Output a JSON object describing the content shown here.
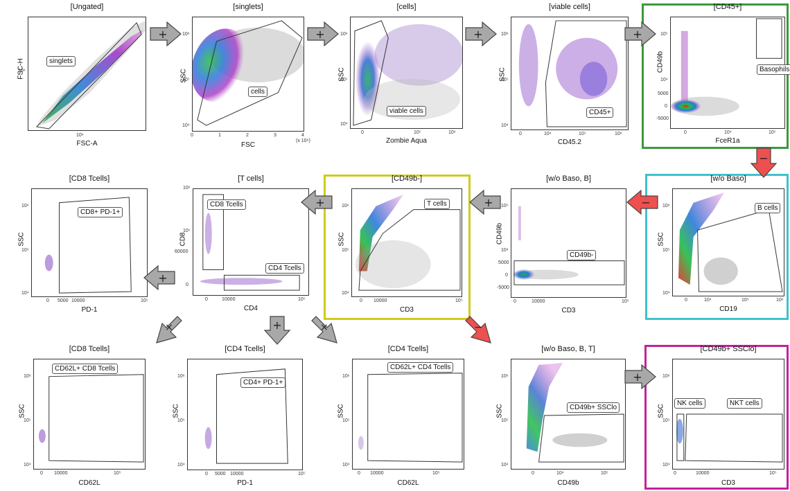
{
  "colors": {
    "green": "#3a9a3a",
    "cyan": "#3ec2cc",
    "yellow": "#cfcb1c",
    "magenta": "#c4219b",
    "arrow_gray": "#9a9a9a",
    "arrow_red": "#e84040"
  },
  "symbols": {
    "plus": "+",
    "minus": "−",
    "times": "×"
  },
  "panels": [
    {
      "id": "p1",
      "title": "[Ungated]",
      "x": "FSC-A",
      "y": "FSC-H",
      "gate": "singlets",
      "gate2": "",
      "xticks": [
        "10⁶"
      ],
      "yticks": [
        "10⁶"
      ]
    },
    {
      "id": "p2",
      "title": "[singlets]",
      "x": "FSC",
      "y": "SSC",
      "gate": "cells",
      "gate2": "",
      "xticks": [
        "0",
        "1",
        "2",
        "3",
        "4",
        "(x 10⁶)"
      ],
      "yticks": [
        "10⁶",
        "10⁵",
        "10⁴"
      ]
    },
    {
      "id": "p3",
      "title": "[cells]",
      "x": "Zombie Aqua",
      "y": "SSC",
      "gate": "viable cells",
      "gate2": "",
      "xticks": [
        "0",
        "10⁵",
        "10⁶"
      ],
      "yticks": [
        "10⁶",
        "10⁵",
        "10⁴"
      ]
    },
    {
      "id": "p4",
      "title": "[viable cells]",
      "x": "CD45.2",
      "y": "SSC",
      "gate": "CD45+",
      "gate2": "",
      "xticks": [
        "0",
        "10⁴",
        "10⁵",
        "10⁶"
      ],
      "yticks": [
        "10⁶",
        "10⁵",
        "10⁴"
      ]
    },
    {
      "id": "p5",
      "title": "[CD45+]",
      "x": "FceR1a",
      "y": "CD49b",
      "gate": "Basophils",
      "gate2": "",
      "xticks": [
        "0",
        "10⁴",
        "10⁵"
      ],
      "yticks": [
        "10⁵",
        "10⁴",
        "5000",
        "0",
        "-5000"
      ]
    },
    {
      "id": "p6",
      "title": "[CD8 Tcells]",
      "x": "PD-1",
      "y": "SSC",
      "gate": "CD8+ PD-1+",
      "gate2": "",
      "xticks": [
        "0",
        "5000",
        "10000",
        "10⁵"
      ],
      "yticks": [
        "10⁶",
        "10⁵",
        "10⁴"
      ]
    },
    {
      "id": "p7",
      "title": "[T cells]",
      "x": "CD4",
      "y": "CD8",
      "gate": "CD8 Tcells",
      "gate2": "CD4 Tcells",
      "xticks": [
        "0",
        "10000",
        "10⁵"
      ],
      "yticks": [
        "10⁶",
        "10⁵",
        "60000",
        "0"
      ]
    },
    {
      "id": "p8",
      "title": "[CD49b-]",
      "x": "CD3",
      "y": "SSC",
      "gate": "T cells",
      "gate2": "",
      "xticks": [
        "0",
        "10000",
        "10⁵"
      ],
      "yticks": [
        "10⁶",
        "10⁵",
        "10⁴"
      ]
    },
    {
      "id": "p9",
      "title": "[w/o Baso, B]",
      "x": "CD3",
      "y": "CD49b",
      "gate": "CD49b-",
      "gate2": "",
      "xticks": [
        "0",
        "10000",
        "10⁵"
      ],
      "yticks": [
        "10⁵",
        "10⁴",
        "5000",
        "0",
        "-5000"
      ]
    },
    {
      "id": "p10",
      "title": "[w/o Baso]",
      "x": "CD19",
      "y": "SSC",
      "gate": "B cells",
      "gate2": "",
      "xticks": [
        "0",
        "10⁴",
        "10⁵",
        "10⁶"
      ],
      "yticks": [
        "10⁶",
        "10⁵",
        "10⁴"
      ]
    },
    {
      "id": "p11",
      "title": "[CD8 Tcells]",
      "x": "CD62L",
      "y": "SSC",
      "gate": "CD62L+ CD8 Tcells",
      "gate2": "",
      "xticks": [
        "0",
        "10000",
        "10⁵"
      ],
      "yticks": [
        "10⁶",
        "10⁵",
        "10⁴"
      ]
    },
    {
      "id": "p12",
      "title": "[CD4 Tcells]",
      "x": "PD-1",
      "y": "SSC",
      "gate": "CD4+ PD-1+",
      "gate2": "",
      "xticks": [
        "0",
        "5000",
        "10000",
        "10⁵"
      ],
      "yticks": [
        "10⁶",
        "10⁵",
        "10⁴"
      ]
    },
    {
      "id": "p13",
      "title": "[CD4 Tcells]",
      "x": "CD62L",
      "y": "SSC",
      "gate": "CD62L+ CD4 Tcells",
      "gate2": "",
      "xticks": [
        "0",
        "10000",
        "10⁵"
      ],
      "yticks": [
        "10⁶",
        "10⁵",
        "10⁴"
      ]
    },
    {
      "id": "p14",
      "title": "[w/o Baso, B, T]",
      "x": "CD49b",
      "y": "SSC",
      "gate": "CD49b+ SSClo",
      "gate2": "",
      "xticks": [
        "0",
        "10⁴",
        "10⁵"
      ],
      "yticks": [
        "10⁶",
        "10⁵",
        "10⁴"
      ]
    },
    {
      "id": "p15",
      "title": "[CD49b+ SSClo]",
      "x": "CD3",
      "y": "SSC",
      "gate": "NK cells",
      "gate2": "NKT cells",
      "xticks": [
        "0",
        "10000",
        "10⁵"
      ],
      "yticks": [
        "10⁶",
        "10⁵",
        "10⁴"
      ]
    }
  ]
}
